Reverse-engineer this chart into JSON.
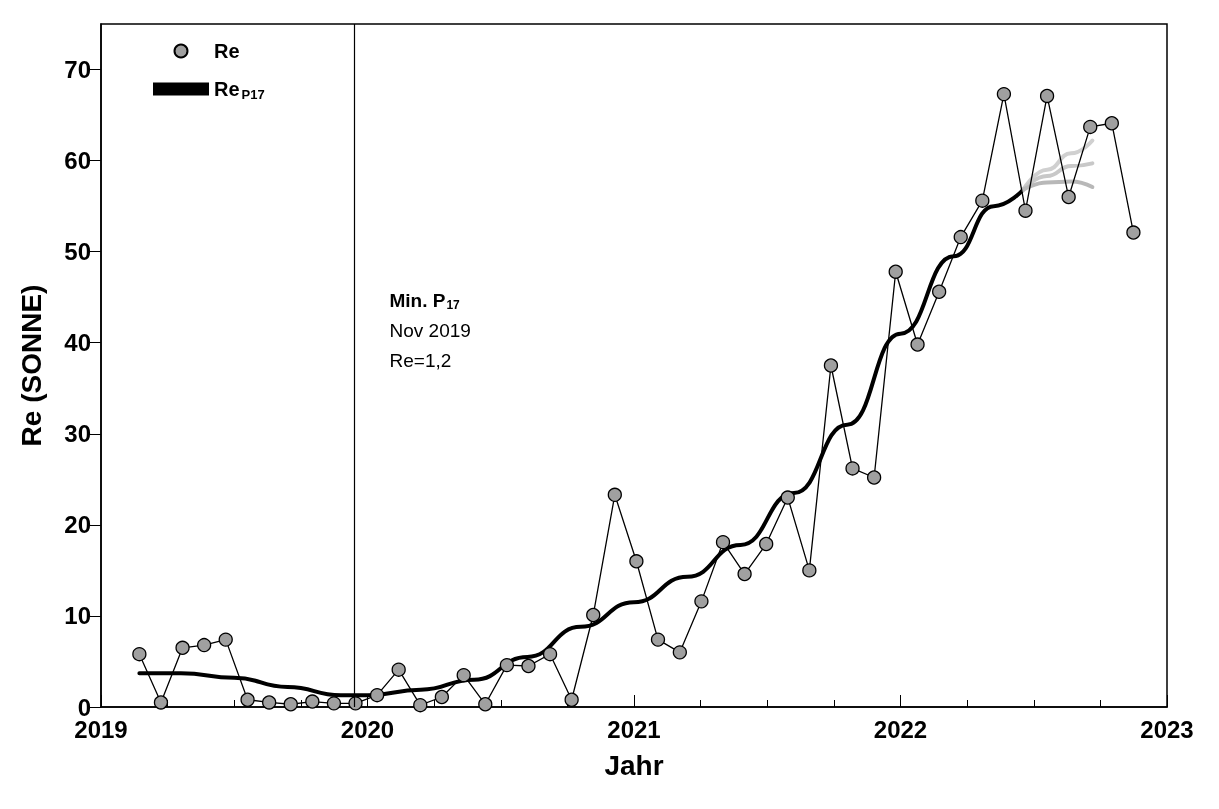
{
  "chart_data": {
    "type": "line",
    "xlabel": "Jahr",
    "ylabel": "Re (SONNE)",
    "xlim": [
      2019,
      2023
    ],
    "xticks": [
      2019,
      2020,
      2021,
      2022,
      2023
    ],
    "ylim": [
      0,
      75
    ],
    "yticks": [
      0,
      10,
      20,
      30,
      40,
      50,
      60,
      70
    ],
    "grid": false,
    "legend": "top left",
    "marker": "circle",
    "line_style": "solid",
    "ref_lines": [
      {
        "axis": "x",
        "value": 2019.955,
        "color": "#000000"
      }
    ],
    "annotations": [
      "Min. P$_{17}$",
      "Nov 2019",
      "Re=1,2"
    ],
    "series": [
      {
        "name": "Re",
        "color": "#a0a0a0",
        "x": [
          2019.144,
          2019.225,
          2019.306,
          2019.387,
          2019.468,
          2019.55,
          2019.631,
          2019.712,
          2019.793,
          2019.874,
          2019.955,
          2020.036,
          2020.117,
          2020.198,
          2020.279,
          2020.361,
          2020.442,
          2020.523,
          2020.604,
          2020.685,
          2020.766,
          2020.847,
          2020.928,
          2021.009,
          2021.09,
          2021.172,
          2021.253,
          2021.334,
          2021.415,
          2021.496,
          2021.577,
          2021.658,
          2021.739,
          2021.82,
          2021.901,
          2021.982,
          2022.064,
          2022.145,
          2022.226,
          2022.307,
          2022.388,
          2022.469,
          2022.55,
          2022.631,
          2022.712,
          2022.793,
          2022.874
        ],
        "values": [
          5.8,
          0.5,
          6.5,
          6.8,
          7.4,
          0.8,
          0.5,
          0.3,
          0.6,
          0.4,
          0.4,
          1.3,
          4.1,
          0.2,
          1.1,
          3.5,
          0.3,
          4.6,
          4.5,
          5.8,
          0.8,
          10.1,
          23.3,
          16.0,
          7.4,
          6.0,
          11.6,
          18.1,
          14.6,
          17.9,
          23.0,
          15.0,
          37.5,
          26.2,
          25.2,
          47.8,
          39.8,
          45.6,
          51.6,
          55.6,
          67.3,
          54.5,
          67.1,
          56.0,
          63.7,
          64.1,
          52.1
        ]
      },
      {
        "name": "Re$_{P17}$",
        "color": "#000000",
        "marker": "none",
        "x": [
          2019.144,
          2019.3,
          2019.5,
          2019.7,
          2019.9,
          2020.0,
          2020.2,
          2020.4,
          2020.6,
          2020.8,
          2021.0,
          2021.2,
          2021.4,
          2021.6,
          2021.8,
          2022.0,
          2022.2,
          2022.35,
          2022.46
        ],
        "values": [
          3.7,
          3.7,
          3.2,
          2.2,
          1.3,
          1.3,
          1.9,
          3.0,
          5.5,
          8.8,
          11.5,
          14.3,
          17.8,
          23.5,
          31,
          41,
          49.5,
          55,
          56.8
        ]
      },
      {
        "color": "#d0d0d0",
        "marker": "none",
        "x": [
          2022.46,
          2022.55,
          2022.64,
          2022.72
        ],
        "values": [
          56.8,
          59,
          60.8,
          62.2
        ]
      },
      {
        "color": "#c8c8c8",
        "marker": "none",
        "x": [
          2022.46,
          2022.55,
          2022.64,
          2022.72
        ],
        "values": [
          56.8,
          58.3,
          59.4,
          59.7
        ]
      },
      {
        "color": "#b8b8b8",
        "marker": "none",
        "x": [
          2022.46,
          2022.55,
          2022.64,
          2022.72
        ],
        "values": [
          56.8,
          57.6,
          57.7,
          57.1
        ]
      }
    ]
  }
}
